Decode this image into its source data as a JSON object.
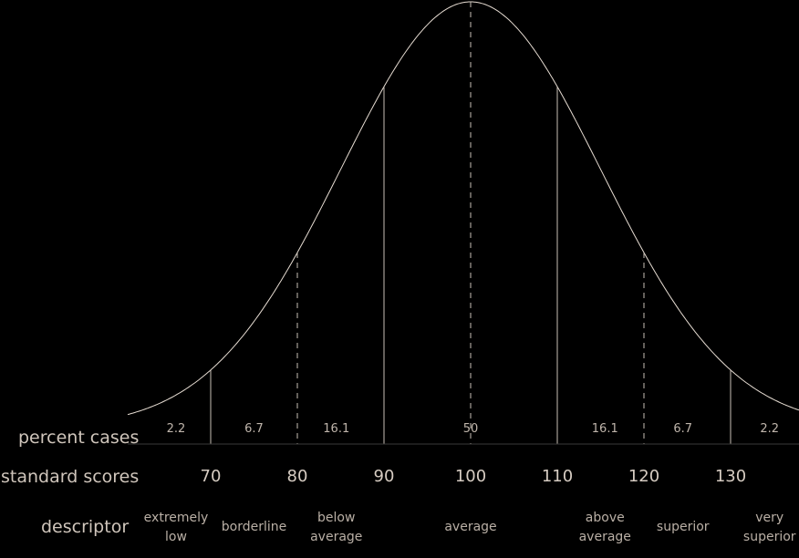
{
  "rows": {
    "percent_label": "percent cases",
    "scores_label": "standard scores",
    "descriptor_label": "descriptor"
  },
  "colors": {
    "background": "#000000",
    "curve": "#e6dcd2",
    "text": "#d0c6bc"
  },
  "chart_data": {
    "type": "area",
    "distribution": "normal",
    "mean": 100,
    "sd": 15,
    "x_range": [
      62,
      138
    ],
    "dividers": [
      70,
      80,
      90,
      100,
      110,
      120,
      130
    ],
    "dashed_dividers": [
      80,
      100,
      120
    ],
    "scores": [
      "70",
      "80",
      "90",
      "100",
      "110",
      "120",
      "130"
    ],
    "bands": [
      {
        "percent": "2.2",
        "center": 66,
        "descriptor": [
          "extremely",
          "low"
        ]
      },
      {
        "percent": "6.7",
        "center": 75,
        "descriptor": [
          "borderline"
        ]
      },
      {
        "percent": "16.1",
        "center": 84.5,
        "descriptor": [
          "below",
          "average"
        ]
      },
      {
        "percent": "50",
        "center": 100,
        "descriptor": [
          "average"
        ]
      },
      {
        "percent": "16.1",
        "center": 115.5,
        "descriptor": [
          "above",
          "average"
        ]
      },
      {
        "percent": "6.7",
        "center": 124.5,
        "descriptor": [
          "superior"
        ]
      },
      {
        "percent": "2.2",
        "center": 134.5,
        "descriptor": [
          "very",
          "superior"
        ]
      }
    ]
  }
}
